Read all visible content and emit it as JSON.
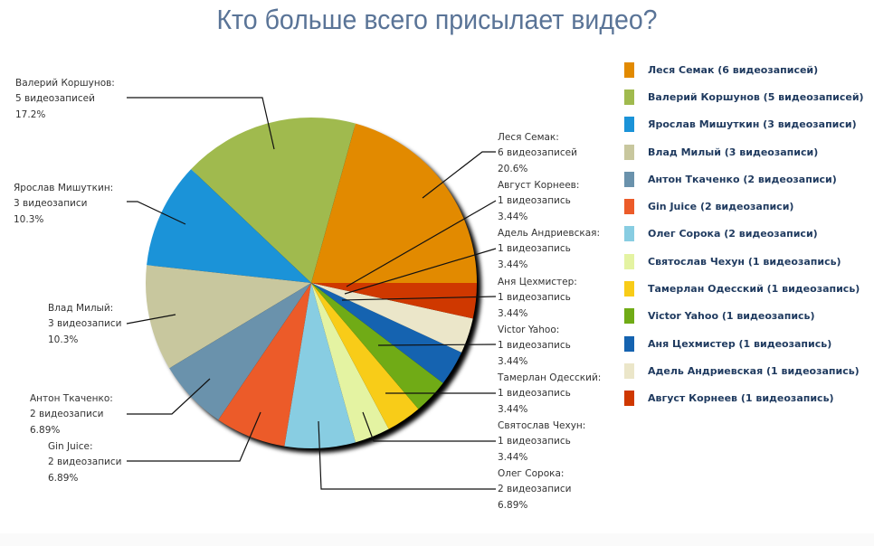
{
  "title": "Кто больше всего присылает видео?",
  "chart_data": {
    "type": "pie",
    "title": "Кто больше всего присылает видео?",
    "unit": "видеозаписи",
    "start_angle_deg": 0,
    "direction": "counter-clockwise from 3 o'clock",
    "legend_position": "right",
    "slices": [
      {
        "name": "Леся Семак",
        "count": 6,
        "count_label": "6 видеозаписей",
        "percent": 20.6,
        "percent_label": "20.6%",
        "color": "#e28a00",
        "legend": "Леся Семак (6 видеозаписей)"
      },
      {
        "name": "Валерий Коршунов",
        "count": 5,
        "count_label": "5 видеозаписей",
        "percent": 17.2,
        "percent_label": "17.2%",
        "color": "#a0ba4e",
        "legend": "Валерий Коршунов (5 видеозаписей)"
      },
      {
        "name": "Ярослав Мишуткин",
        "count": 3,
        "count_label": "3 видеозаписи",
        "percent": 10.3,
        "percent_label": "10.3%",
        "color": "#1b93d8",
        "legend": "Ярослав Мишуткин (3 видеозаписи)"
      },
      {
        "name": "Влад Милый",
        "count": 3,
        "count_label": "3 видеозаписи",
        "percent": 10.3,
        "percent_label": "10.3%",
        "color": "#c8c79e",
        "legend": "Влад Милый (3 видеозаписи)"
      },
      {
        "name": "Антон Ткаченко",
        "count": 2,
        "count_label": "2 видеозаписи",
        "percent": 6.89,
        "percent_label": "6.89%",
        "color": "#6a92ac",
        "legend": "Антон Ткаченко (2 видеозаписи)"
      },
      {
        "name": "Gin Juice",
        "count": 2,
        "count_label": "2 видеозаписи",
        "percent": 6.89,
        "percent_label": "6.89%",
        "color": "#ec5b29",
        "legend": "Gin Juice (2 видеозаписи)"
      },
      {
        "name": "Олег Сорока",
        "count": 2,
        "count_label": "2 видеозаписи",
        "percent": 6.89,
        "percent_label": "6.89%",
        "color": "#88cde2",
        "legend": "Олег Сорока (2 видеозаписи)"
      },
      {
        "name": "Святослав Чехун",
        "count": 1,
        "count_label": "1 видеозапись",
        "percent": 3.44,
        "percent_label": "3.44%",
        "color": "#e4f3a2",
        "legend": "Святослав Чехун (1 видеозапись)"
      },
      {
        "name": "Тамерлан Одесский",
        "count": 1,
        "count_label": "1 видеозапись",
        "percent": 3.44,
        "percent_label": "3.44%",
        "color": "#f8cc18",
        "legend": "Тамерлан Одесский (1 видеозапись)"
      },
      {
        "name": "Victor Yahoo",
        "count": 1,
        "count_label": "1 видеозапись",
        "percent": 3.44,
        "percent_label": "3.44%",
        "color": "#70ab16",
        "legend": "Victor Yahoo (1 видеозапись)"
      },
      {
        "name": "Аня Цехмистер",
        "count": 1,
        "count_label": "1 видеозапись",
        "percent": 3.44,
        "percent_label": "3.44%",
        "color": "#1563b0",
        "legend": "Аня Цехмистер (1 видеозапись)"
      },
      {
        "name": "Адель Андриевская",
        "count": 1,
        "count_label": "1 видеозапись",
        "percent": 3.44,
        "percent_label": "3.44%",
        "color": "#ebe6c9",
        "legend": "Адель Андриевская (1 видеозапись)"
      },
      {
        "name": "Август Корнеев",
        "count": 1,
        "count_label": "1 видеозапись",
        "percent": 3.44,
        "percent_label": "3.44%",
        "color": "#cf3800",
        "legend": "Август Корнеев (1 видеозапись)"
      }
    ]
  },
  "labels": [
    {
      "name": "Валерий Коршунов:",
      "count": "5 видеозаписей",
      "pct": "17.2%"
    },
    {
      "name": "Ярослав Мишуткин:",
      "count": "3 видеозаписи",
      "pct": "10.3%"
    },
    {
      "name": "Влад Милый:",
      "count": "3 видеозаписи",
      "pct": "10.3%"
    },
    {
      "name": "Антон Ткаченко:",
      "count": "2 видеозаписи",
      "pct": "6.89%"
    },
    {
      "name": "Gin Juice:",
      "count": "2 видеозаписи",
      "pct": "6.89%"
    },
    {
      "name": "Леся Семак:",
      "count": "6 видеозаписей",
      "pct": "20.6%"
    },
    {
      "name": "Август Корнеев:",
      "count": "1 видеозапись",
      "pct": "3.44%"
    },
    {
      "name": "Адель Андриевская:",
      "count": "1 видеозапись",
      "pct": "3.44%"
    },
    {
      "name": "Аня Цехмистер:",
      "count": "1 видеозапись",
      "pct": "3.44%"
    },
    {
      "name": "Victor Yahoo:",
      "count": "1 видеозапись",
      "pct": "3.44%"
    },
    {
      "name": "Тамерлан Одесский:",
      "count": "1 видеозапись",
      "pct": "3.44%"
    },
    {
      "name": "Святослав Чехун:",
      "count": "1 видеозапись",
      "pct": "3.44%"
    },
    {
      "name": "Олег Сорока:",
      "count": "2 видеозаписи",
      "pct": "6.89%"
    }
  ],
  "legend": [
    {
      "text": "Леся Семак (6 видеозаписей)",
      "color": "#e28a00"
    },
    {
      "text": "Валерий Коршунов (5 видеозаписей)",
      "color": "#a0ba4e"
    },
    {
      "text": "Ярослав Мишуткин (3 видеозаписи)",
      "color": "#1b93d8"
    },
    {
      "text": "Влад Милый (3 видеозаписи)",
      "color": "#c8c79e"
    },
    {
      "text": "Антон Ткаченко (2 видеозаписи)",
      "color": "#6a92ac"
    },
    {
      "text": "Gin Juice (2 видеозаписи)",
      "color": "#ec5b29"
    },
    {
      "text": "Олег Сорока (2 видеозаписи)",
      "color": "#88cde2"
    },
    {
      "text": "Святослав Чехун (1 видеозапись)",
      "color": "#e4f3a2"
    },
    {
      "text": "Тамерлан Одесский (1 видеозапись)",
      "color": "#f8cc18"
    },
    {
      "text": "Victor Yahoo (1 видеозапись)",
      "color": "#70ab16"
    },
    {
      "text": "Аня Цехмистер (1 видеозапись)",
      "color": "#1563b0"
    },
    {
      "text": "Адель Андриевская (1 видеозапись)",
      "color": "#ebe6c9"
    },
    {
      "text": "Август Корнеев (1 видеозапись)",
      "color": "#cf3800"
    }
  ]
}
